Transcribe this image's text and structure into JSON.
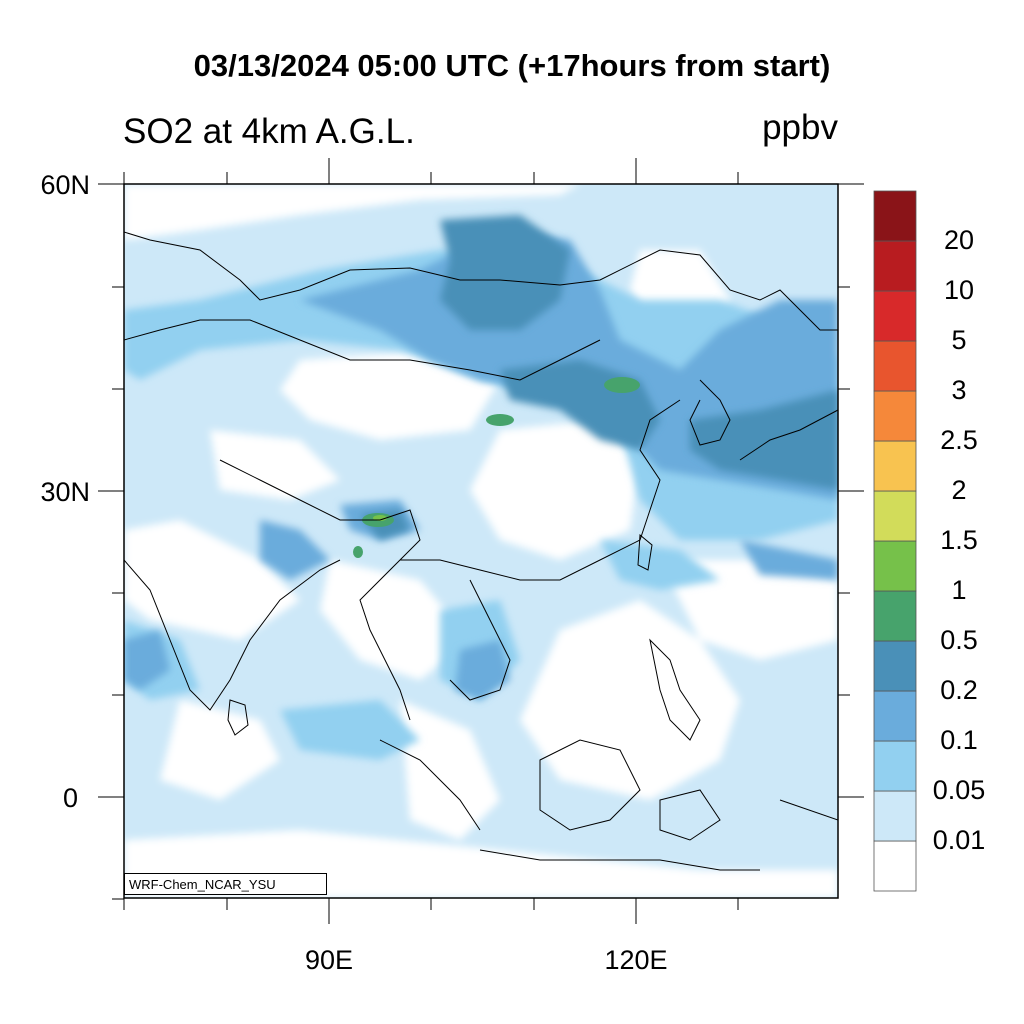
{
  "header": {
    "title": "03/13/2024 05:00 UTC (+17hours from start)",
    "subtitle": "SO2 at 4km A.G.L.",
    "units": "ppbv"
  },
  "axes": {
    "lat_labels": [
      "60N",
      "30N",
      "0"
    ],
    "lon_labels": [
      "90E",
      "120E"
    ]
  },
  "colorbar": {
    "levels": [
      "0.01",
      "0.05",
      "0.1",
      "0.2",
      "0.5",
      "1",
      "1.5",
      "2",
      "2.5",
      "3",
      "5",
      "10",
      "20"
    ],
    "colors": [
      "#ffffff",
      "#cde8f8",
      "#92d0f0",
      "#6aacdc",
      "#4a90b8",
      "#47a36c",
      "#76c14a",
      "#d2dc5a",
      "#f8c350",
      "#f5883a",
      "#e8552e",
      "#d8292a",
      "#b81c20",
      "#8a1418"
    ]
  },
  "credit": "WRF-Chem_NCAR_YSU"
}
